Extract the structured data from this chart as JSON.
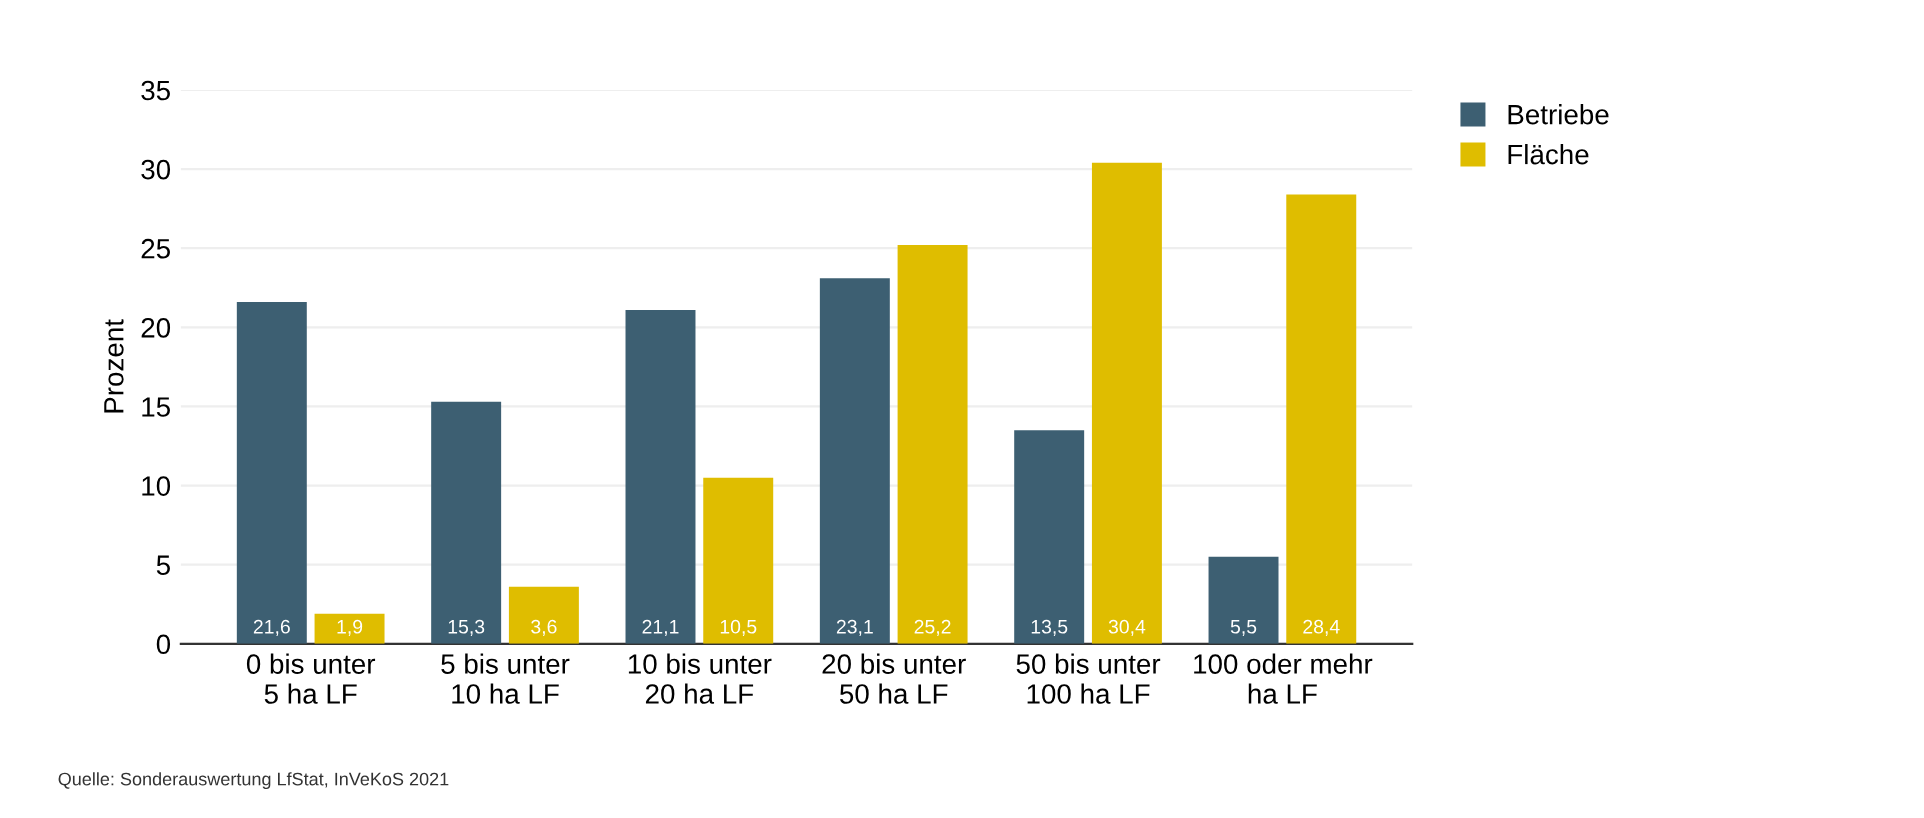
{
  "chart_data": {
    "type": "bar",
    "ylabel": "Prozent",
    "categories": [
      "0 bis unter\n5 ha LF",
      "5 bis unter\n10 ha LF",
      "10 bis unter\n20 ha LF",
      "20 bis unter\n50 ha LF",
      "50 bis unter\n100 ha LF",
      "100 oder mehr\nha LF"
    ],
    "series": [
      {
        "name": "Betriebe",
        "color": "#3d5f72",
        "values": [
          21.6,
          15.3,
          21.1,
          23.1,
          13.5,
          5.5
        ],
        "value_labels": [
          "21,6",
          "15,3",
          "21,1",
          "23,1",
          "13,5",
          "5,5"
        ]
      },
      {
        "name": "Fläche",
        "color": "#dfbd00",
        "values": [
          1.9,
          3.6,
          10.5,
          25.2,
          30.4,
          28.4
        ],
        "value_labels": [
          "1,9",
          "3,6",
          "10,5",
          "25,2",
          "30,4",
          "28,4"
        ]
      }
    ],
    "ylim": [
      0,
      35
    ],
    "yticks": [
      0,
      5,
      10,
      15,
      20,
      25,
      30,
      35
    ],
    "grid": "y",
    "legend": "top right",
    "annotations": [
      "Quelle: Sonderauswertung LfStat, InVeKoS 2021"
    ]
  }
}
